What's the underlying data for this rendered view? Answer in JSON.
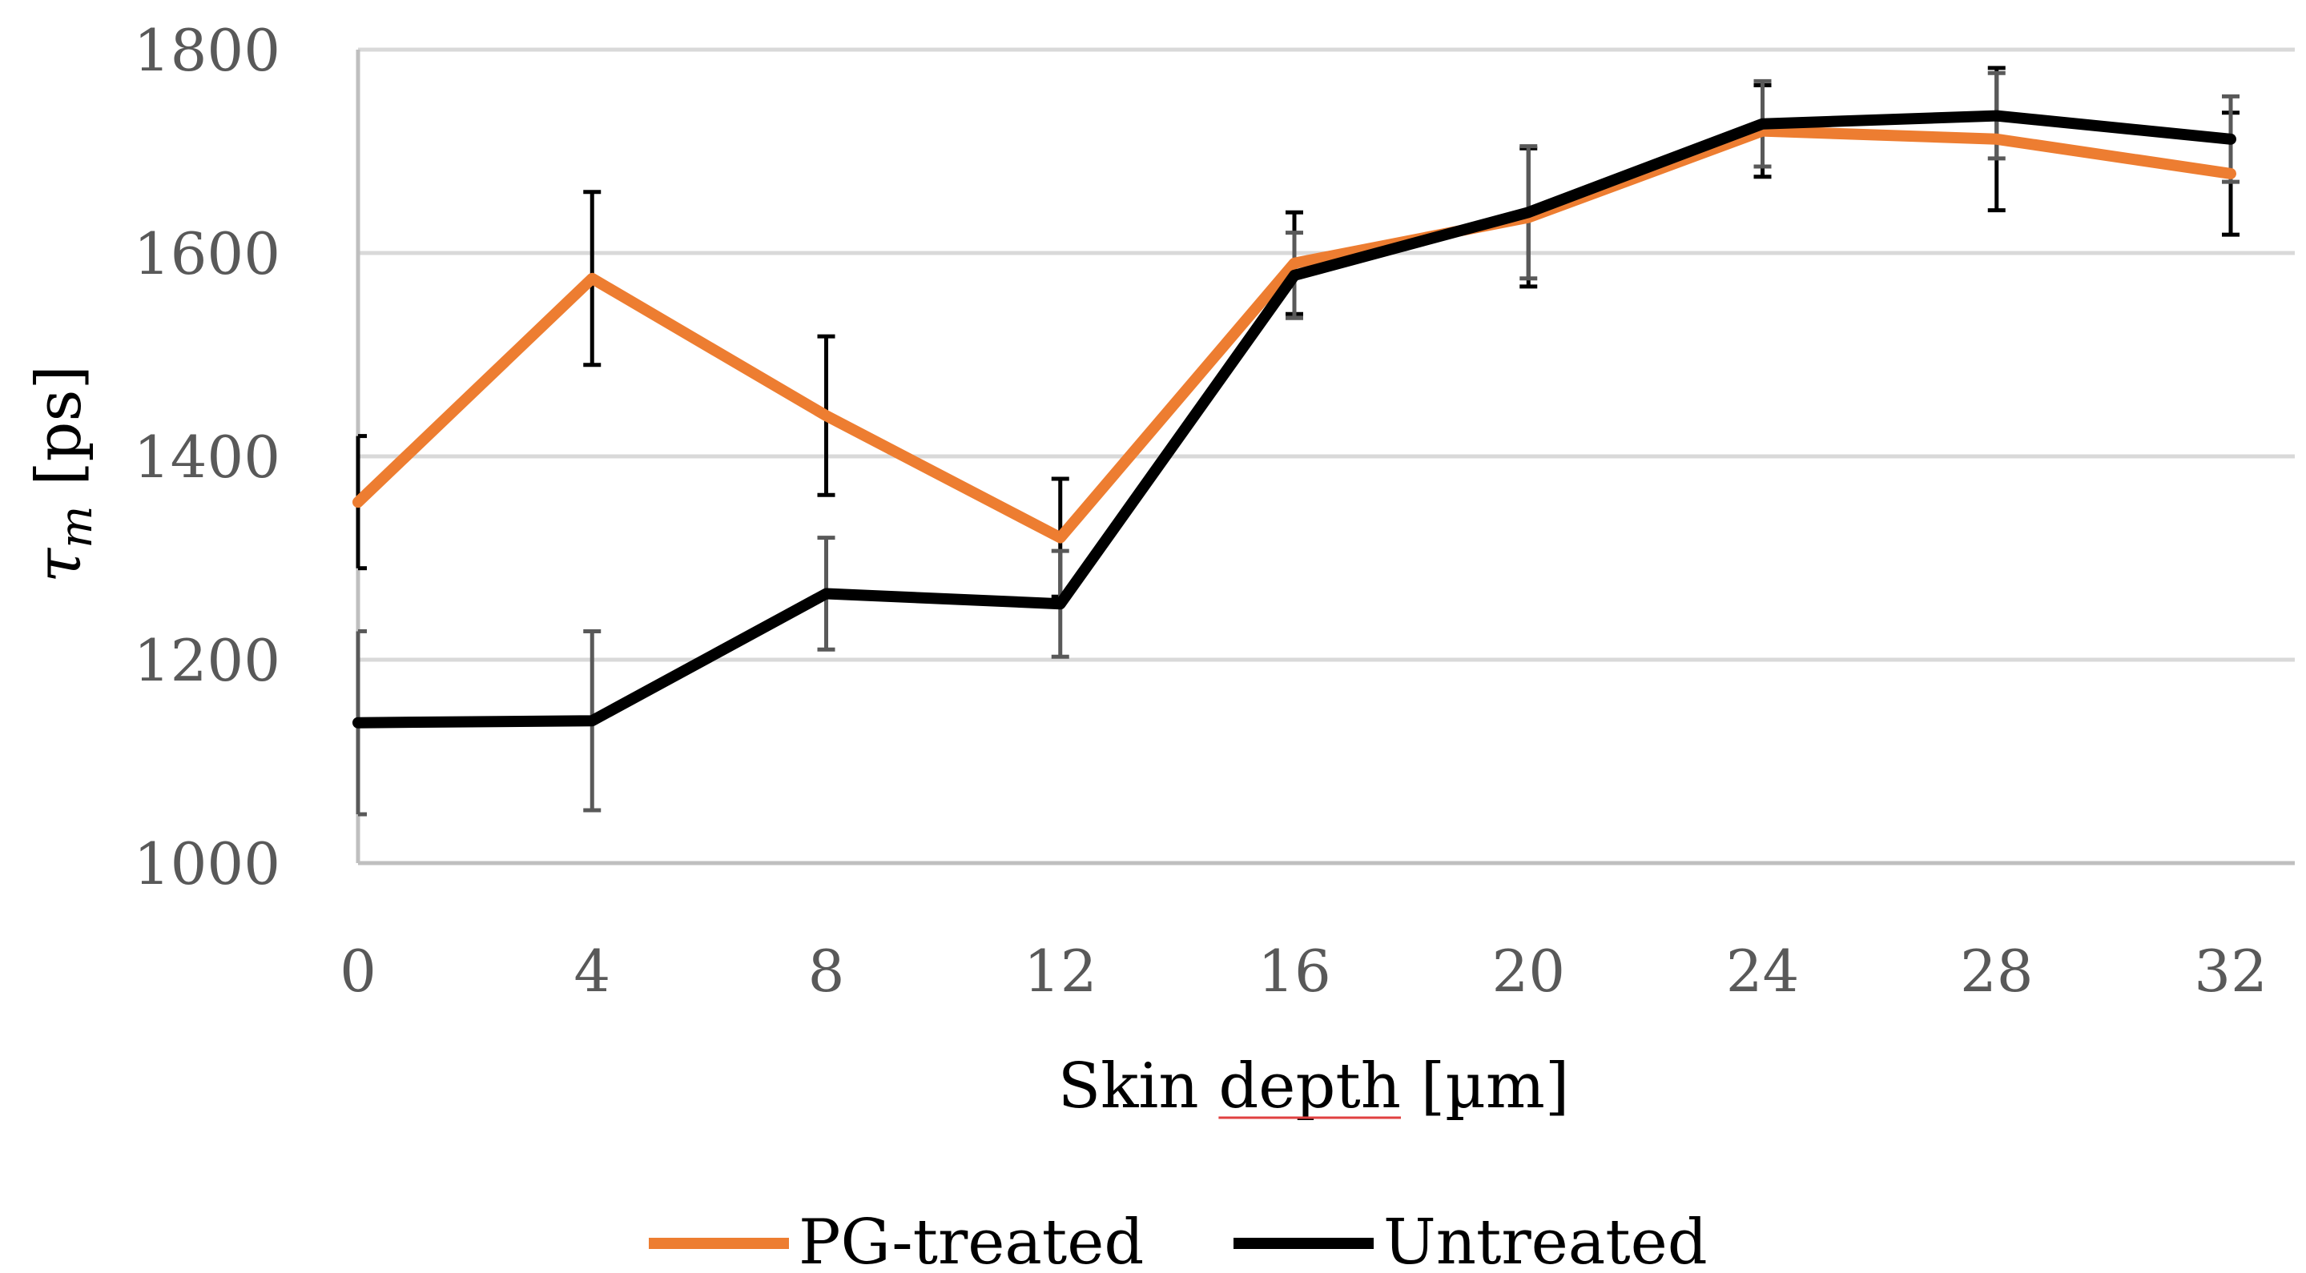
{
  "chart_data": {
    "type": "line",
    "title": "",
    "xlabel_main": "Skin ",
    "xlabel_underlined": "depth",
    "xlabel_unit": " [µm]",
    "ylabel_symbol": "τ",
    "ylabel_sub": "m",
    "ylabel_unit": " [ps]",
    "x": [
      0,
      4,
      8,
      12,
      16,
      20,
      24,
      28,
      32
    ],
    "x_tick_labels": [
      "0",
      "4",
      "8",
      "12",
      "16",
      "20",
      "24",
      "28",
      "32"
    ],
    "xlim": [
      0,
      33
    ],
    "ylim": [
      1000,
      1800
    ],
    "y_ticks": [
      1000,
      1200,
      1400,
      1600,
      1800
    ],
    "y_tick_labels": [
      "1000",
      "1200",
      "1400",
      "1600",
      "1800"
    ],
    "grid": true,
    "legend_position": "bottom",
    "series": [
      {
        "name": "PG-treated",
        "color": "#ED7D31",
        "values": [
          1355,
          1575,
          1440,
          1320,
          1590,
          1635,
          1720,
          1712,
          1678
        ],
        "errors": [
          65,
          85,
          78,
          58,
          50,
          68,
          45,
          70,
          60
        ],
        "error_color": "#000000"
      },
      {
        "name": "Untreated",
        "color": "#000000",
        "values": [
          1138,
          1140,
          1265,
          1255,
          1578,
          1640,
          1727,
          1735,
          1712
        ],
        "errors": [
          90,
          88,
          55,
          52,
          42,
          65,
          42,
          42,
          42
        ],
        "error_color": "#595959"
      }
    ]
  }
}
